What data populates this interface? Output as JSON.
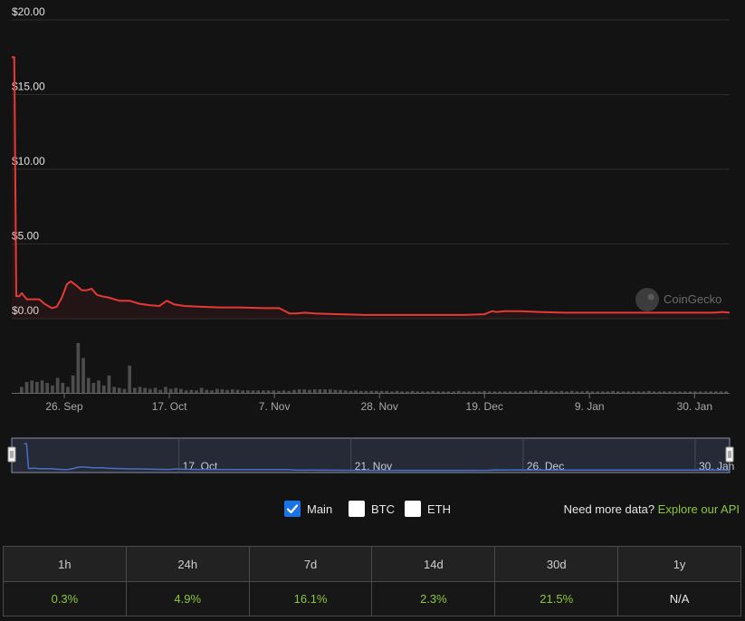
{
  "colors": {
    "line": "#e53935",
    "volume": "#4d4d4d",
    "navigator_line": "#4a6fc4",
    "positive": "#8dc63f",
    "checkbox_checked": "#1a73e8"
  },
  "chart_data": {
    "type": "line",
    "y_axis": {
      "ticks": [
        "$20.00",
        "$15.00",
        "$10.00",
        "$5.00",
        "$0.00"
      ],
      "range": [
        0,
        20
      ]
    },
    "x_axis": {
      "ticks": [
        {
          "label": "26. Sep",
          "day": 0
        },
        {
          "label": "17. Oct",
          "day": 21
        },
        {
          "label": "7. Nov",
          "day": 42
        },
        {
          "label": "28. Nov",
          "day": 63
        },
        {
          "label": "19. Dec",
          "day": 84
        },
        {
          "label": "9. Jan",
          "day": 105
        },
        {
          "label": "30. Jan",
          "day": 126
        }
      ],
      "range": [
        -10.5,
        133
      ]
    },
    "price_series": {
      "name": "Main",
      "points": [
        [
          -10.5,
          17.5
        ],
        [
          -10.0,
          17.5
        ],
        [
          -9.6,
          1.5
        ],
        [
          -9.0,
          1.5
        ],
        [
          -8.5,
          1.7
        ],
        [
          -7.5,
          1.3
        ],
        [
          -6.0,
          1.3
        ],
        [
          -5.0,
          1.3
        ],
        [
          -4.0,
          1.0
        ],
        [
          -2.5,
          0.7
        ],
        [
          -1.5,
          0.8
        ],
        [
          -0.5,
          1.4
        ],
        [
          0.5,
          2.3
        ],
        [
          1.3,
          2.5
        ],
        [
          2.5,
          2.2
        ],
        [
          3.5,
          1.9
        ],
        [
          4.5,
          1.9
        ],
        [
          5.5,
          2.0
        ],
        [
          6.5,
          1.6
        ],
        [
          7.5,
          1.5
        ],
        [
          9.0,
          1.4
        ],
        [
          11.0,
          1.2
        ],
        [
          13.0,
          1.2
        ],
        [
          15.0,
          1.0
        ],
        [
          17.0,
          0.9
        ],
        [
          19.0,
          0.85
        ],
        [
          20.5,
          1.2
        ],
        [
          22.0,
          0.95
        ],
        [
          24.0,
          0.85
        ],
        [
          27.0,
          0.8
        ],
        [
          31.0,
          0.75
        ],
        [
          35.0,
          0.75
        ],
        [
          40.0,
          0.7
        ],
        [
          43.0,
          0.7
        ],
        [
          45.0,
          0.35
        ],
        [
          46.5,
          0.35
        ],
        [
          48.0,
          0.4
        ],
        [
          50.0,
          0.35
        ],
        [
          55.0,
          0.3
        ],
        [
          60.0,
          0.25
        ],
        [
          65.0,
          0.25
        ],
        [
          70.0,
          0.25
        ],
        [
          75.0,
          0.25
        ],
        [
          80.0,
          0.25
        ],
        [
          84.0,
          0.3
        ],
        [
          85.5,
          0.5
        ],
        [
          86.5,
          0.45
        ],
        [
          88.0,
          0.5
        ],
        [
          91.0,
          0.5
        ],
        [
          95.0,
          0.45
        ],
        [
          100.0,
          0.4
        ],
        [
          105.0,
          0.4
        ],
        [
          110.0,
          0.4
        ],
        [
          115.0,
          0.4
        ],
        [
          120.0,
          0.4
        ],
        [
          125.0,
          0.4
        ],
        [
          130.0,
          0.4
        ],
        [
          131.5,
          0.45
        ],
        [
          133.0,
          0.4
        ]
      ]
    },
    "volume_series": {
      "name": "Volume",
      "relative_values": [
        0.12,
        0.22,
        0.25,
        0.22,
        0.25,
        0.2,
        0.15,
        0.3,
        0.2,
        0.12,
        0.35,
        1.0,
        0.7,
        0.3,
        0.2,
        0.25,
        0.15,
        0.35,
        0.12,
        0.1,
        0.08,
        0.55,
        0.1,
        0.12,
        0.1,
        0.08,
        0.1,
        0.06,
        0.12,
        0.08,
        0.1,
        0.08,
        0.05,
        0.06,
        0.05,
        0.1,
        0.06,
        0.05,
        0.08,
        0.07,
        0.06,
        0.07,
        0.06,
        0.05,
        0.05,
        0.05,
        0.05,
        0.05,
        0.05,
        0.05,
        0.04,
        0.05,
        0.04,
        0.06,
        0.07,
        0.07,
        0.06,
        0.07,
        0.07,
        0.07,
        0.07,
        0.06,
        0.06,
        0.05,
        0.04,
        0.05,
        0.04,
        0.04,
        0.04,
        0.04,
        0.04,
        0.04,
        0.03,
        0.04,
        0.03,
        0.03,
        0.04,
        0.03,
        0.03,
        0.03,
        0.04,
        0.03,
        0.03,
        0.03,
        0.03,
        0.04,
        0.03,
        0.03,
        0.03,
        0.03,
        0.04,
        0.03,
        0.03,
        0.03,
        0.03,
        0.03,
        0.03,
        0.03,
        0.03,
        0.04,
        0.05,
        0.04,
        0.04,
        0.04,
        0.03,
        0.04,
        0.03,
        0.04,
        0.03,
        0.03,
        0.04,
        0.03,
        0.03,
        0.03,
        0.03,
        0.04,
        0.03,
        0.03,
        0.03,
        0.03,
        0.03,
        0.03,
        0.04,
        0.03,
        0.03,
        0.03,
        0.03,
        0.03,
        0.03,
        0.03,
        0.03,
        0.03,
        0.03,
        0.03,
        0.03,
        0.03,
        0.03,
        0.03
      ]
    },
    "navigator": {
      "labels": [
        {
          "label": "17. Oct",
          "day": 21
        },
        {
          "label": "21. Nov",
          "day": 56
        },
        {
          "label": "26. Dec",
          "day": 91
        },
        {
          "label": "30. Jan",
          "day": 126
        }
      ],
      "range": [
        -13,
        133
      ]
    },
    "watermark": "CoinGecko",
    "legend": "none",
    "grid": "horizontal"
  },
  "controls": {
    "checkboxes": [
      {
        "label": "Main",
        "checked": true
      },
      {
        "label": "BTC",
        "checked": false
      },
      {
        "label": "ETH",
        "checked": false
      }
    ],
    "api_prompt": "Need more data?",
    "api_link": "Explore our API"
  },
  "performance": {
    "headers": [
      "1h",
      "24h",
      "7d",
      "14d",
      "30d",
      "1y"
    ],
    "values": [
      "0.3%",
      "4.9%",
      "16.1%",
      "2.3%",
      "21.5%",
      "N/A"
    ]
  }
}
